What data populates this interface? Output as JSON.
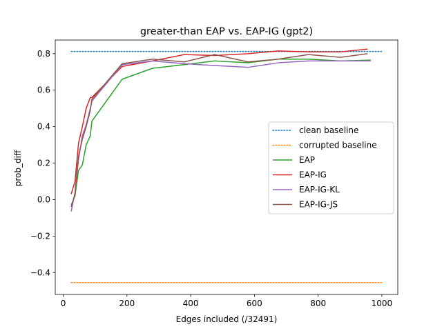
{
  "chart_data": {
    "type": "line",
    "title": "greater-than EAP vs. EAP-IG (gpt2)",
    "xlabel": "Edges included (/32491)",
    "ylabel": "prob_diff",
    "xlim": [
      -25,
      1050
    ],
    "ylim": [
      -0.52,
      0.875
    ],
    "xticks": [
      0,
      200,
      400,
      600,
      800,
      1000
    ],
    "yticks": [
      -0.4,
      -0.2,
      0.0,
      0.2,
      0.4,
      0.6,
      0.8
    ],
    "xtick_labels": [
      "0",
      "200",
      "400",
      "600",
      "800",
      "1000"
    ],
    "ytick_labels": [
      "−0.4",
      "−0.2",
      "0.0",
      "0.2",
      "0.4",
      "0.6",
      "0.8"
    ],
    "grid": false,
    "legend_position": "center-right",
    "baselines": [
      {
        "name": "clean baseline",
        "value": 0.812,
        "x_range": [
          25,
          1000
        ],
        "color": "#1f77b4",
        "style": "dotted"
      },
      {
        "name": "corrupted baseline",
        "value": -0.455,
        "x_range": [
          25,
          1000
        ],
        "color": "#ff7f0e",
        "style": "dotted"
      }
    ],
    "series": [
      {
        "name": "EAP",
        "color": "#2ca02c",
        "x": [
          25,
          37,
          48,
          60,
          72,
          85,
          90,
          185,
          280,
          380,
          475,
          580,
          675,
          770,
          870,
          965
        ],
        "y": [
          -0.03,
          0.02,
          0.16,
          0.19,
          0.3,
          0.35,
          0.43,
          0.66,
          0.72,
          0.74,
          0.76,
          0.75,
          0.77,
          0.77,
          0.76,
          0.765
        ]
      },
      {
        "name": "EAP-IG",
        "color": "#d62728",
        "x": [
          25,
          37,
          48,
          60,
          72,
          85,
          90,
          185,
          280,
          380,
          475,
          580,
          675,
          770,
          870,
          955
        ],
        "y": [
          0.03,
          0.1,
          0.31,
          0.4,
          0.5,
          0.56,
          0.56,
          0.73,
          0.76,
          0.795,
          0.79,
          0.8,
          0.815,
          0.81,
          0.81,
          0.825
        ]
      },
      {
        "name": "EAP-IG-KL",
        "color": "#9467bd",
        "x": [
          25,
          37,
          48,
          60,
          72,
          85,
          90,
          185,
          280,
          380,
          475,
          580,
          675,
          770,
          870,
          965
        ],
        "y": [
          -0.065,
          0.04,
          0.22,
          0.35,
          0.41,
          0.5,
          0.54,
          0.74,
          0.76,
          0.745,
          0.735,
          0.725,
          0.75,
          0.76,
          0.76,
          0.76
        ]
      },
      {
        "name": "EAP-IG-JS",
        "color": "#8c564b",
        "x": [
          25,
          37,
          48,
          60,
          72,
          85,
          90,
          185,
          280,
          380,
          475,
          580,
          675,
          770,
          870,
          955
        ],
        "y": [
          -0.04,
          0.03,
          0.24,
          0.33,
          0.4,
          0.49,
          0.55,
          0.745,
          0.77,
          0.755,
          0.795,
          0.755,
          0.77,
          0.795,
          0.78,
          0.8
        ]
      }
    ]
  }
}
